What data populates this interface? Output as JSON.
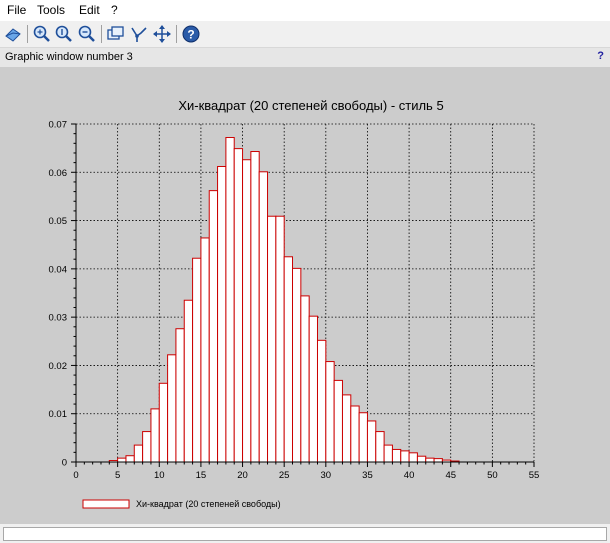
{
  "menu": {
    "file": "File",
    "tools": "Tools",
    "edit": "Edit",
    "help": "?"
  },
  "toolbar": {
    "icons": [
      "rotate-icon",
      "zoom-icon",
      "zoom-original-icon",
      "zoom-out-icon",
      "window-icon",
      "datatip-icon",
      "pan-icon",
      "help-icon"
    ]
  },
  "info": {
    "text": "Graphic window number 3",
    "help_mark": "?"
  },
  "chart_data": {
    "type": "bar",
    "title": "Хи-квадрат (20 степеней свободы) - стиль 5",
    "xlim": [
      0,
      55
    ],
    "ylim": [
      0,
      0.07
    ],
    "x_ticks": [
      0,
      5,
      10,
      15,
      20,
      25,
      30,
      35,
      40,
      45,
      50,
      55
    ],
    "x_tick_labels": [
      "0",
      "5",
      "10",
      "15",
      "20",
      "25",
      "30",
      "35",
      "40",
      "45",
      "50",
      "55"
    ],
    "y_ticks": [
      0,
      0.01,
      0.02,
      0.03,
      0.04,
      0.05,
      0.06,
      0.07
    ],
    "y_tick_labels": [
      "0",
      "0.01",
      "0.02",
      "0.03",
      "0.04",
      "0.05",
      "0.06",
      "0.07"
    ],
    "grid": true,
    "bar_color": "#cc0000",
    "bar_fill": "#ffffff",
    "legend": {
      "label": "Хи-квадрат (20 степеней свободы)",
      "position": "bottom-left"
    },
    "bin_width": 1,
    "bins_start": [
      4,
      5,
      6,
      7,
      8,
      9,
      10,
      11,
      12,
      13,
      14,
      15,
      16,
      17,
      18,
      19,
      20,
      21,
      22,
      23,
      24,
      25,
      26,
      27,
      28,
      29,
      30,
      31,
      32,
      33,
      34,
      35,
      36,
      37,
      38,
      39,
      40,
      41,
      42,
      43,
      44,
      45
    ],
    "values": [
      0.0003,
      0.0008,
      0.0013,
      0.0035,
      0.0063,
      0.011,
      0.0163,
      0.0222,
      0.0276,
      0.0335,
      0.0422,
      0.0464,
      0.0562,
      0.0612,
      0.0672,
      0.0649,
      0.0626,
      0.0643,
      0.0601,
      0.0509,
      0.0509,
      0.0425,
      0.0401,
      0.0344,
      0.0302,
      0.0252,
      0.0208,
      0.0169,
      0.0139,
      0.0116,
      0.0102,
      0.0085,
      0.0063,
      0.0035,
      0.0026,
      0.0023,
      0.0019,
      0.0012,
      0.0008,
      0.0007,
      0.0004,
      0.0002
    ]
  }
}
